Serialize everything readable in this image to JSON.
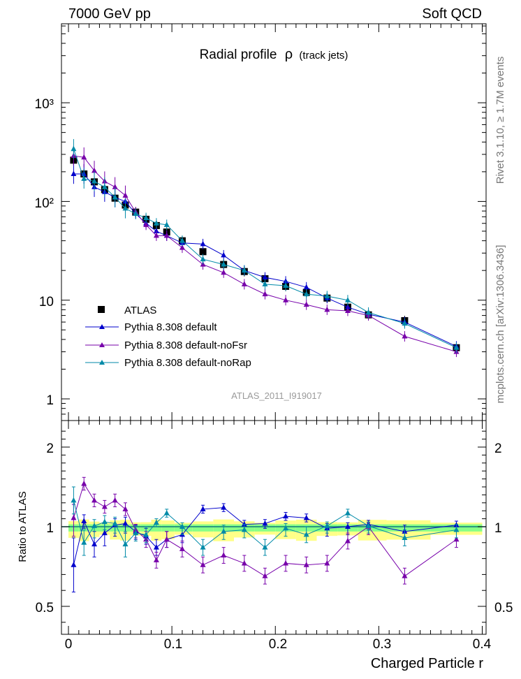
{
  "header": {
    "left": "7000 GeV pp",
    "right": "Soft QCD"
  },
  "side_labels": {
    "top": "Rivet 3.1.10, ≥ 1.7M events",
    "bottom": "mcplots.cern.ch [arXiv:1306.3436]"
  },
  "chart_data": {
    "type": "line",
    "title_main": "Radial profile",
    "title_symbol": "ρ",
    "title_sub": "(track jets)",
    "analysis_id": "ATLAS_2011_I919017",
    "xlabel": "Charged Particle r",
    "ylabel_ratio": "Ratio to ATLAS",
    "xlim": [
      -0.01,
      0.4
    ],
    "ylim_main": [
      0.6,
      6000
    ],
    "yscale_main": "log",
    "ylim_ratio": [
      0.3,
      2.3
    ],
    "x_ticks": [
      "0",
      "0.1",
      "0.2",
      "0.3",
      "0.4"
    ],
    "y_ticks_main": [
      "1",
      "10",
      "10²",
      "10³"
    ],
    "y_ticks_ratio": [
      "0.5",
      "1",
      "2"
    ],
    "legend_position": "bottom-left",
    "x": [
      0.005,
      0.015,
      0.025,
      0.035,
      0.045,
      0.055,
      0.065,
      0.075,
      0.085,
      0.095,
      0.11,
      0.13,
      0.15,
      0.17,
      0.19,
      0.21,
      0.23,
      0.25,
      0.27,
      0.29,
      0.325,
      0.375
    ],
    "series": [
      {
        "name": "ATLAS",
        "color": "#000000",
        "marker": "square",
        "values": [
          262,
          190,
          158,
          132,
          108,
          92,
          78,
          66,
          57,
          49,
          40,
          31,
          23,
          19.5,
          16.5,
          13.8,
          12.0,
          10.5,
          8.5,
          7.1,
          6.2,
          3.3
        ]
      },
      {
        "name": "Pythia 8.308 default",
        "color": "#0000cc",
        "marker": "triangle",
        "values": [
          190,
          190,
          140,
          125,
          110,
          100,
          75,
          60,
          50,
          45,
          38,
          37,
          28.5,
          20,
          17,
          15.5,
          13.5,
          10.5,
          8.5,
          7.2,
          6.0,
          3.4
        ],
        "ratio": [
          0.76,
          1.07,
          0.89,
          0.96,
          1.02,
          1.04,
          0.97,
          0.94,
          0.87,
          0.92,
          0.95,
          1.22,
          1.24,
          1.03,
          1.04,
          1.13,
          1.11,
          0.99,
          1.0,
          1.03,
          0.97,
          1.02
        ]
      },
      {
        "name": "Pythia 8.308 default-noFsr",
        "color": "#7700aa",
        "marker": "triangle",
        "values": [
          290,
          280,
          205,
          160,
          140,
          115,
          78,
          58,
          45,
          45,
          34,
          23,
          19,
          14.5,
          11.5,
          10.0,
          9.0,
          8.0,
          7.8,
          7.0,
          4.3,
          3.0
        ],
        "ratio": [
          1.11,
          1.54,
          1.33,
          1.25,
          1.33,
          1.22,
          0.98,
          0.92,
          0.79,
          0.92,
          0.86,
          0.76,
          0.82,
          0.77,
          0.69,
          0.77,
          0.76,
          0.77,
          0.91,
          1.0,
          0.69,
          0.92
        ]
      },
      {
        "name": "Pythia 8.308 default-noRap",
        "color": "#008aa8",
        "marker": "triangle",
        "values": [
          340,
          170,
          160,
          140,
          110,
          85,
          75,
          68,
          60,
          58,
          40,
          26,
          23,
          20,
          14.5,
          14.0,
          11.5,
          11.0,
          10.0,
          7.5,
          5.8,
          3.3
        ],
        "ratio": [
          1.33,
          0.9,
          1.01,
          1.06,
          1.04,
          0.89,
          0.96,
          0.95,
          1.05,
          1.17,
          1.0,
          0.87,
          0.97,
          0.98,
          0.87,
          0.99,
          0.95,
          1.01,
          1.17,
          1.01,
          0.93,
          0.98
        ]
      }
    ],
    "error_fraction_mc": 0.13,
    "band_inner_halfwidth": 0.03,
    "band_outer_halfwidth": 0.07,
    "band_colors": {
      "inner": "#88ff88",
      "outer": "#ffff88",
      "line": "#0a7a7a"
    }
  }
}
